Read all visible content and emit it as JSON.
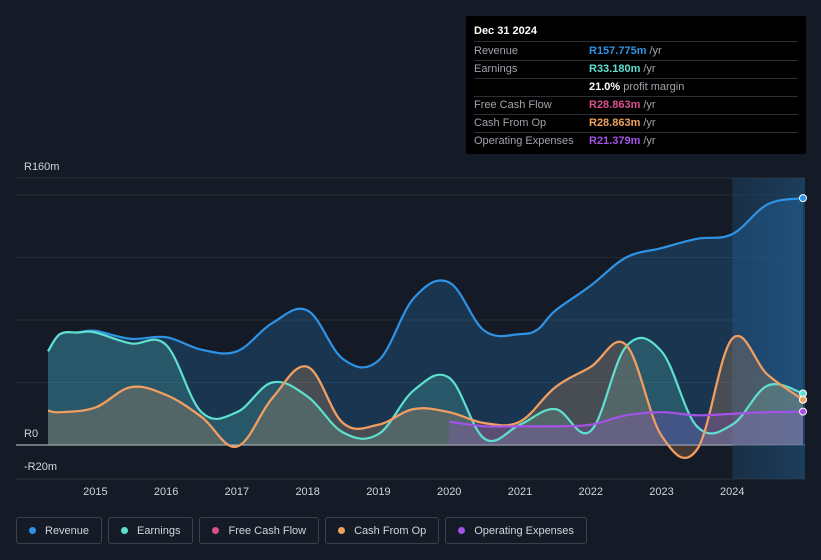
{
  "tooltip": {
    "date": "Dec 31 2024",
    "rows": [
      {
        "label": "Revenue",
        "value": "R157.775m",
        "unit": "/yr",
        "color": "#2e93e6"
      },
      {
        "label": "Earnings",
        "value": "R33.180m",
        "unit": "/yr",
        "color": "#5fe0cf"
      },
      {
        "label": "",
        "value": "21.0%",
        "unit": "profit margin",
        "color": "#ffffff"
      },
      {
        "label": "Free Cash Flow",
        "value": "R28.863m",
        "unit": "/yr",
        "color": "#d9508c"
      },
      {
        "label": "Cash From Op",
        "value": "R28.863m",
        "unit": "/yr",
        "color": "#eda15f"
      },
      {
        "label": "Operating Expenses",
        "value": "R21.379m",
        "unit": "/yr",
        "color": "#a452ea"
      }
    ]
  },
  "legend": [
    {
      "label": "Revenue",
      "color": "#2e93e6"
    },
    {
      "label": "Earnings",
      "color": "#5fe0cf"
    },
    {
      "label": "Free Cash Flow",
      "color": "#d9508c"
    },
    {
      "label": "Cash From Op",
      "color": "#eda15f"
    },
    {
      "label": "Operating Expenses",
      "color": "#a452ea"
    }
  ],
  "chart_data": {
    "type": "area",
    "title": "",
    "xlabel": "",
    "ylabel": "",
    "ylim": [
      -20,
      160
    ],
    "y_tick_labels": [
      "R160m",
      "R0",
      "-R20m"
    ],
    "y_tick_values": [
      160,
      0,
      -20
    ],
    "x_ticks": [
      "2015",
      "2016",
      "2017",
      "2018",
      "2019",
      "2020",
      "2021",
      "2022",
      "2023",
      "2024"
    ],
    "x_tick_values": [
      2015,
      2016,
      2017,
      2018,
      2019,
      2020,
      2021,
      2022,
      2023,
      2024
    ],
    "xlim": [
      2014.33,
      2025.0
    ],
    "highlight_from": 2024.0,
    "series": [
      {
        "name": "Revenue",
        "color": "#2e93e6",
        "points": [
          [
            2014.33,
            60
          ],
          [
            2014.5,
            71
          ],
          [
            2014.75,
            72
          ],
          [
            2015.0,
            73
          ],
          [
            2015.5,
            68
          ],
          [
            2016.0,
            69
          ],
          [
            2016.5,
            61
          ],
          [
            2017.0,
            60
          ],
          [
            2017.5,
            78
          ],
          [
            2018.0,
            86
          ],
          [
            2018.5,
            55
          ],
          [
            2019.0,
            54
          ],
          [
            2019.5,
            94
          ],
          [
            2020.0,
            104
          ],
          [
            2020.5,
            73
          ],
          [
            2021.0,
            71
          ],
          [
            2021.25,
            74
          ],
          [
            2021.5,
            86
          ],
          [
            2022.0,
            102
          ],
          [
            2022.5,
            120
          ],
          [
            2023.0,
            126
          ],
          [
            2023.5,
            132
          ],
          [
            2024.0,
            135
          ],
          [
            2024.5,
            154
          ],
          [
            2025.0,
            158
          ]
        ]
      },
      {
        "name": "Earnings",
        "color": "#5fe0cf",
        "points": [
          [
            2014.33,
            60
          ],
          [
            2014.5,
            71
          ],
          [
            2014.75,
            72
          ],
          [
            2015.0,
            72
          ],
          [
            2015.5,
            65
          ],
          [
            2016.0,
            64
          ],
          [
            2016.5,
            21
          ],
          [
            2017.0,
            21
          ],
          [
            2017.5,
            40
          ],
          [
            2018.0,
            31
          ],
          [
            2018.5,
            8
          ],
          [
            2019.0,
            7
          ],
          [
            2019.5,
            35
          ],
          [
            2020.0,
            43
          ],
          [
            2020.5,
            4
          ],
          [
            2021.0,
            13
          ],
          [
            2021.5,
            23
          ],
          [
            2022.0,
            9
          ],
          [
            2022.5,
            63
          ],
          [
            2023.0,
            60
          ],
          [
            2023.5,
            12
          ],
          [
            2024.0,
            13
          ],
          [
            2024.5,
            38
          ],
          [
            2025.0,
            33
          ]
        ]
      },
      {
        "name": "Free Cash Flow",
        "color": "#d9508c",
        "points": [
          [
            2014.33,
            22
          ],
          [
            2014.5,
            21
          ],
          [
            2015.0,
            24
          ],
          [
            2015.5,
            37
          ],
          [
            2016.0,
            32
          ],
          [
            2016.5,
            18
          ],
          [
            2017.0,
            -1
          ],
          [
            2017.5,
            30
          ],
          [
            2018.0,
            50
          ],
          [
            2018.5,
            14
          ],
          [
            2019.0,
            13
          ],
          [
            2019.5,
            23
          ],
          [
            2020.0,
            21
          ],
          [
            2020.5,
            14
          ],
          [
            2021.0,
            15
          ],
          [
            2021.5,
            37
          ],
          [
            2022.0,
            50
          ],
          [
            2022.5,
            64
          ],
          [
            2023.0,
            6
          ],
          [
            2023.5,
            -3
          ],
          [
            2024.0,
            68
          ],
          [
            2024.5,
            45
          ],
          [
            2025.0,
            29
          ]
        ]
      },
      {
        "name": "Cash From Op",
        "color": "#eda15f",
        "points": [
          [
            2014.33,
            22
          ],
          [
            2014.5,
            21
          ],
          [
            2015.0,
            24
          ],
          [
            2015.5,
            37
          ],
          [
            2016.0,
            32
          ],
          [
            2016.5,
            18
          ],
          [
            2017.0,
            -1
          ],
          [
            2017.5,
            30
          ],
          [
            2018.0,
            50
          ],
          [
            2018.5,
            14
          ],
          [
            2019.0,
            13
          ],
          [
            2019.5,
            23
          ],
          [
            2020.0,
            21
          ],
          [
            2020.5,
            14
          ],
          [
            2021.0,
            15
          ],
          [
            2021.5,
            37
          ],
          [
            2022.0,
            50
          ],
          [
            2022.5,
            64
          ],
          [
            2023.0,
            6
          ],
          [
            2023.5,
            -3
          ],
          [
            2024.0,
            68
          ],
          [
            2024.5,
            45
          ],
          [
            2025.0,
            29
          ]
        ]
      },
      {
        "name": "Operating Expenses",
        "color": "#a452ea",
        "points": [
          [
            2020.0,
            15
          ],
          [
            2020.5,
            12
          ],
          [
            2021.0,
            12
          ],
          [
            2021.5,
            12
          ],
          [
            2022.0,
            13
          ],
          [
            2022.5,
            19
          ],
          [
            2023.0,
            21
          ],
          [
            2023.5,
            19
          ],
          [
            2024.0,
            20
          ],
          [
            2024.5,
            21
          ],
          [
            2025.0,
            21.4
          ]
        ]
      }
    ]
  }
}
